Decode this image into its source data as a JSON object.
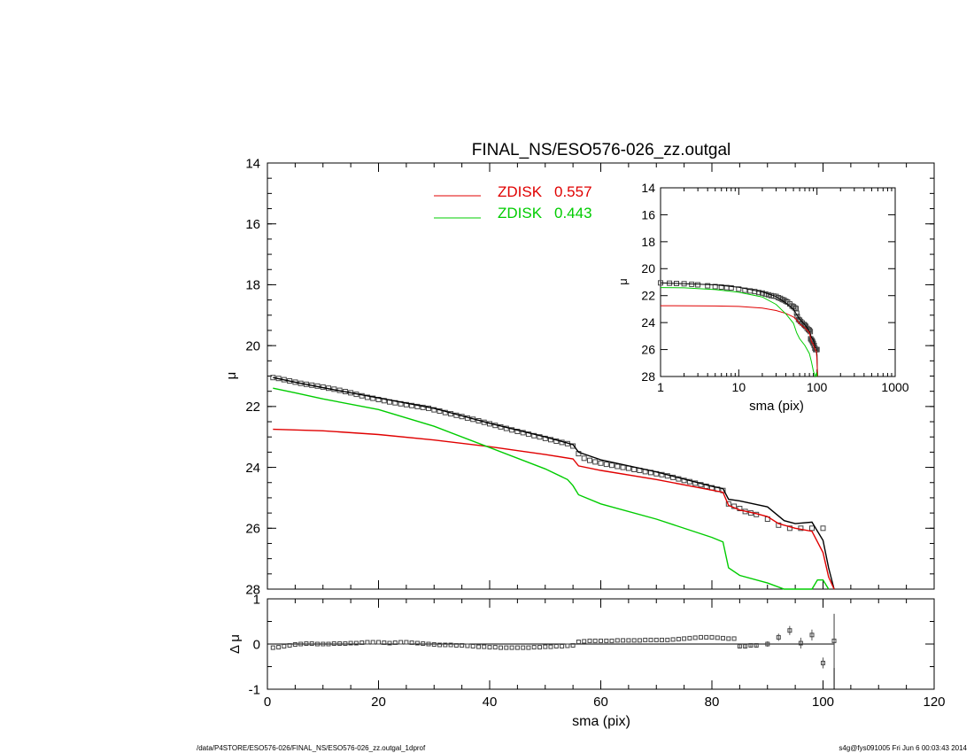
{
  "footer": {
    "path": "/data/P4STORE/ESO576-026/FINAL_NS/ESO576-026_zz.outgal_1dprof",
    "stamp": "s4g@fys091005  Fri Jun  6 00:03:43 2014"
  },
  "chart_data": [
    {
      "id": "main",
      "type": "line",
      "title": "FINAL_NS/ESO576-026_zz.outgal",
      "xlabel": "",
      "ylabel": "μ",
      "xlim": [
        0,
        120
      ],
      "ylim": [
        28,
        14
      ],
      "y_inverted": true,
      "yticks": [
        14,
        16,
        18,
        20,
        22,
        24,
        26,
        28
      ],
      "xticks_labeled": false,
      "legend": {
        "placement": "top-center",
        "entries": [
          {
            "name": "ZDISK",
            "value": "0.557",
            "color": "#e00000"
          },
          {
            "name": "ZDISK",
            "value": "0.443",
            "color": "#00cc00"
          }
        ]
      },
      "series": [
        {
          "name": "data",
          "style": "squares",
          "color": "#444444",
          "x": [
            1,
            2,
            3,
            4,
            5,
            6,
            7,
            8,
            9,
            10,
            11,
            12,
            13,
            14,
            15,
            16,
            17,
            18,
            19,
            20,
            21,
            22,
            23,
            24,
            25,
            26,
            27,
            28,
            29,
            30,
            31,
            32,
            33,
            34,
            35,
            36,
            37,
            38,
            39,
            40,
            41,
            42,
            43,
            44,
            45,
            46,
            47,
            48,
            49,
            50,
            51,
            52,
            53,
            54,
            55,
            56,
            57,
            58,
            59,
            60,
            61,
            62,
            63,
            64,
            65,
            66,
            67,
            68,
            69,
            70,
            71,
            72,
            73,
            74,
            75,
            76,
            77,
            78,
            79,
            80,
            81,
            82,
            83,
            84,
            85,
            86,
            87,
            88,
            90,
            92,
            94,
            96,
            98,
            100
          ],
          "y": [
            21.05,
            21.08,
            21.12,
            21.16,
            21.2,
            21.24,
            21.27,
            21.3,
            21.33,
            21.36,
            21.4,
            21.43,
            21.47,
            21.51,
            21.55,
            21.6,
            21.65,
            21.7,
            21.73,
            21.77,
            21.81,
            21.85,
            21.88,
            21.91,
            21.94,
            21.97,
            22.0,
            22.03,
            22.06,
            22.11,
            22.15,
            22.2,
            22.24,
            22.29,
            22.33,
            22.38,
            22.42,
            22.47,
            22.52,
            22.57,
            22.62,
            22.67,
            22.72,
            22.77,
            22.82,
            22.86,
            22.91,
            22.96,
            23.0,
            23.05,
            23.09,
            23.14,
            23.18,
            23.22,
            23.3,
            23.55,
            23.7,
            23.77,
            23.82,
            23.86,
            23.9,
            23.93,
            23.97,
            24.0,
            24.03,
            24.07,
            24.1,
            24.14,
            24.17,
            24.21,
            24.24,
            24.28,
            24.33,
            24.38,
            24.43,
            24.47,
            24.52,
            24.57,
            24.62,
            24.67,
            24.72,
            24.76,
            25.2,
            25.28,
            25.35,
            25.45,
            25.5,
            25.55,
            25.7,
            25.9,
            26.0,
            26.0,
            26.0,
            26.0
          ]
        },
        {
          "name": "model",
          "style": "line",
          "color": "#000000",
          "x": [
            1,
            5,
            10,
            20,
            30,
            40,
            50,
            55,
            56,
            60,
            70,
            80,
            82,
            83,
            85,
            90,
            93,
            95,
            98,
            100,
            101,
            102
          ],
          "y": [
            21.05,
            21.2,
            21.38,
            21.72,
            22.06,
            22.55,
            23.0,
            23.25,
            23.5,
            23.75,
            24.15,
            24.62,
            24.7,
            25.05,
            25.1,
            25.3,
            25.75,
            25.85,
            25.8,
            26.4,
            27.3,
            28.3
          ]
        },
        {
          "name": "ZDISK 0.557",
          "style": "line",
          "color": "#e00000",
          "x": [
            1,
            10,
            20,
            30,
            40,
            50,
            55,
            56,
            60,
            70,
            80,
            82,
            83,
            85,
            88,
            90,
            92,
            95,
            98,
            100,
            101,
            102
          ],
          "y": [
            22.75,
            22.8,
            22.92,
            23.1,
            23.32,
            23.58,
            23.72,
            23.95,
            24.1,
            24.4,
            24.75,
            24.82,
            25.25,
            25.4,
            25.52,
            25.62,
            25.85,
            26.0,
            26.1,
            26.8,
            27.6,
            28.3
          ]
        },
        {
          "name": "ZDISK 0.443",
          "style": "line",
          "color": "#00cc00",
          "x": [
            1,
            5,
            10,
            20,
            30,
            40,
            50,
            54,
            55,
            56,
            60,
            70,
            80,
            82,
            83,
            85,
            90,
            93,
            94,
            96,
            98,
            99,
            100,
            101
          ],
          "y": [
            21.4,
            21.55,
            21.75,
            22.1,
            22.65,
            23.35,
            24.05,
            24.4,
            24.6,
            24.9,
            25.2,
            25.7,
            26.3,
            26.45,
            27.3,
            27.55,
            27.8,
            28.05,
            28.2,
            28.3,
            28.1,
            27.7,
            27.7,
            28.3
          ]
        }
      ]
    },
    {
      "id": "inset",
      "type": "line",
      "xlabel": "sma (pix)",
      "ylabel": "μ",
      "xscale": "log",
      "xlim": [
        1,
        1000
      ],
      "ylim": [
        28,
        14
      ],
      "y_inverted": true,
      "xticks": [
        "1",
        "10",
        "100",
        "1000"
      ],
      "yticks": [
        14,
        16,
        18,
        20,
        22,
        24,
        26,
        28
      ],
      "series": [
        {
          "name": "data",
          "style": "squares",
          "color": "#444444",
          "x": [
            1,
            1.3,
            1.6,
            2,
            2.5,
            3,
            4,
            5,
            6,
            7,
            8,
            10,
            12,
            14,
            16,
            18,
            20,
            22,
            24,
            26,
            28,
            30,
            32,
            34,
            36,
            38,
            40,
            42,
            45,
            48,
            50,
            52,
            54,
            55,
            56,
            58,
            60,
            62,
            65,
            68,
            70,
            72,
            75,
            78,
            80,
            82,
            83,
            85,
            87,
            88,
            90,
            92,
            94,
            96,
            98,
            100
          ],
          "y": [
            21.05,
            21.08,
            21.1,
            21.12,
            21.16,
            21.2,
            21.27,
            21.33,
            21.36,
            21.4,
            21.43,
            21.51,
            21.6,
            21.65,
            21.7,
            21.77,
            21.81,
            21.88,
            21.94,
            22.0,
            22.03,
            22.06,
            22.15,
            22.2,
            22.29,
            22.33,
            22.42,
            22.47,
            22.62,
            22.77,
            22.82,
            22.91,
            22.96,
            23.3,
            23.55,
            23.77,
            23.82,
            23.93,
            24.03,
            24.14,
            24.21,
            24.28,
            24.43,
            24.52,
            24.57,
            24.67,
            25.2,
            25.28,
            25.35,
            25.45,
            25.55,
            25.7,
            25.9,
            26.0,
            26.0,
            26.0
          ]
        },
        {
          "name": "model",
          "style": "line",
          "color": "#000000",
          "x": [
            1,
            2,
            5,
            10,
            20,
            30,
            40,
            50,
            55,
            60,
            70,
            80,
            85,
            90,
            95,
            98,
            100,
            101,
            102
          ],
          "y": [
            21.05,
            21.12,
            21.2,
            21.38,
            21.72,
            22.06,
            22.55,
            23.0,
            23.4,
            23.75,
            24.15,
            24.62,
            25.1,
            25.3,
            25.85,
            25.9,
            26.4,
            27.3,
            28.3
          ]
        },
        {
          "name": "ZDISK 0.557",
          "style": "line",
          "color": "#e00000",
          "x": [
            1,
            5,
            10,
            20,
            30,
            40,
            50,
            55,
            60,
            70,
            80,
            85,
            90,
            95,
            98,
            100,
            101,
            102
          ],
          "y": [
            22.75,
            22.77,
            22.8,
            22.92,
            23.1,
            23.32,
            23.58,
            23.8,
            24.1,
            24.4,
            24.75,
            25.4,
            25.62,
            26.0,
            26.1,
            26.8,
            27.6,
            28.3
          ]
        },
        {
          "name": "ZDISK 0.443",
          "style": "line",
          "color": "#00cc00",
          "x": [
            1,
            2,
            5,
            10,
            20,
            30,
            40,
            50,
            55,
            60,
            70,
            80,
            85,
            90,
            95,
            99,
            101
          ],
          "y": [
            21.4,
            21.42,
            21.55,
            21.75,
            22.1,
            22.65,
            23.35,
            24.05,
            24.75,
            25.2,
            25.7,
            26.3,
            26.9,
            27.6,
            28.0,
            27.7,
            28.3
          ]
        }
      ]
    },
    {
      "id": "residual",
      "type": "scatter",
      "xlabel": "sma (pix)",
      "ylabel": "Δ μ",
      "xlim": [
        0,
        120
      ],
      "ylim": [
        -1,
        1
      ],
      "xticks": [
        0,
        20,
        40,
        60,
        80,
        100,
        120
      ],
      "yticks": [
        -1,
        0,
        1
      ],
      "zero_line": true,
      "vertical_line_x": 102,
      "series": [
        {
          "name": "residual",
          "style": "squares",
          "color": "#444444",
          "x": [
            1,
            2,
            3,
            4,
            5,
            6,
            7,
            8,
            9,
            10,
            11,
            12,
            13,
            14,
            15,
            16,
            17,
            18,
            19,
            20,
            21,
            22,
            23,
            24,
            25,
            26,
            27,
            28,
            29,
            30,
            31,
            32,
            33,
            34,
            35,
            36,
            37,
            38,
            39,
            40,
            41,
            42,
            43,
            44,
            45,
            46,
            47,
            48,
            49,
            50,
            51,
            52,
            53,
            54,
            55,
            56,
            57,
            58,
            59,
            60,
            61,
            62,
            63,
            64,
            65,
            66,
            67,
            68,
            69,
            70,
            71,
            72,
            73,
            74,
            75,
            76,
            77,
            78,
            79,
            80,
            81,
            82,
            83,
            84,
            85,
            86,
            87,
            88,
            90,
            92,
            94,
            96,
            98,
            100,
            102
          ],
          "y": [
            -0.08,
            -0.07,
            -0.05,
            -0.03,
            -0.01,
            0.0,
            0.01,
            0.01,
            0.0,
            0.0,
            0.0,
            0.01,
            0.01,
            0.01,
            0.02,
            0.02,
            0.03,
            0.04,
            0.04,
            0.04,
            0.03,
            0.02,
            0.03,
            0.04,
            0.04,
            0.03,
            0.02,
            0.01,
            0.0,
            -0.01,
            -0.02,
            -0.02,
            -0.02,
            -0.03,
            -0.03,
            -0.04,
            -0.05,
            -0.06,
            -0.06,
            -0.07,
            -0.07,
            -0.08,
            -0.08,
            -0.08,
            -0.08,
            -0.08,
            -0.08,
            -0.07,
            -0.07,
            -0.06,
            -0.06,
            -0.05,
            -0.05,
            -0.04,
            -0.03,
            0.05,
            0.06,
            0.07,
            0.07,
            0.07,
            0.07,
            0.07,
            0.08,
            0.08,
            0.08,
            0.08,
            0.08,
            0.09,
            0.09,
            0.09,
            0.09,
            0.09,
            0.1,
            0.11,
            0.12,
            0.13,
            0.14,
            0.15,
            0.15,
            0.15,
            0.14,
            0.13,
            0.12,
            0.12,
            -0.05,
            -0.05,
            -0.03,
            -0.03,
            0.0,
            0.15,
            0.3,
            0.02,
            0.2,
            -0.42,
            0.07
          ],
          "yerr": [
            0,
            0,
            0,
            0,
            0,
            0,
            0,
            0,
            0,
            0,
            0,
            0,
            0,
            0,
            0,
            0,
            0,
            0,
            0,
            0,
            0,
            0,
            0,
            0,
            0,
            0,
            0,
            0,
            0,
            0,
            0,
            0,
            0,
            0,
            0,
            0,
            0,
            0,
            0,
            0,
            0,
            0,
            0,
            0,
            0,
            0,
            0,
            0,
            0,
            0,
            0,
            0,
            0,
            0,
            0,
            0,
            0,
            0,
            0,
            0,
            0,
            0,
            0,
            0,
            0,
            0,
            0,
            0,
            0,
            0,
            0,
            0,
            0,
            0,
            0,
            0,
            0,
            0,
            0,
            0,
            0,
            0,
            0,
            0,
            0.05,
            0.05,
            0.05,
            0.05,
            0.06,
            0.08,
            0.1,
            0.12,
            0.12,
            0.12,
            0.6
          ]
        }
      ]
    }
  ]
}
